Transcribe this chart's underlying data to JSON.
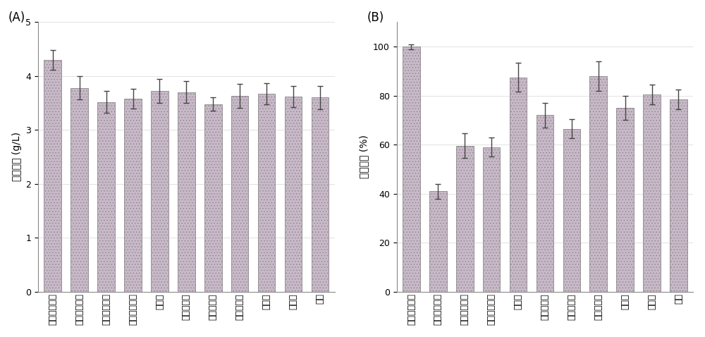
{
  "categories_A": [
    "分子级蛋白胨",
    "工业级蛋白胨",
    "生化级牛肉膏",
    "工业级牛肉膏",
    "酪蛋白",
    "鱼粉蛋白胨",
    "大豆蛋白胨",
    "柠檬酸三铵",
    "氯化铵",
    "硫酸铵",
    "尿素"
  ],
  "values_A": [
    4.3,
    3.78,
    3.52,
    3.58,
    3.72,
    3.7,
    3.48,
    3.63,
    3.67,
    3.62,
    3.6
  ],
  "errors_A": [
    0.18,
    0.22,
    0.2,
    0.18,
    0.22,
    0.2,
    0.12,
    0.22,
    0.2,
    0.2,
    0.22
  ],
  "ylabel_A": "菌体干重 (g/L)",
  "ylim_A": [
    0,
    5
  ],
  "yticks_A": [
    0,
    1,
    2,
    3,
    4,
    5
  ],
  "label_A": "(A)",
  "categories_B": [
    "分子级蛋白胨",
    "工业级蛋白胨",
    "生化级牛肉膏",
    "工业级牛肉膏",
    "酪蛋白",
    "鱼粉蛋白胨",
    "大豆蛋白胨",
    "柠檬酸三铵",
    "氯化铵",
    "硫酸铵",
    "尿素"
  ],
  "values_B": [
    100,
    41,
    59.5,
    59,
    87.5,
    72,
    66.5,
    88,
    75,
    80.5,
    78.5
  ],
  "errors_B": [
    1,
    3,
    5,
    4,
    6,
    5,
    4,
    6,
    5,
    4,
    4
  ],
  "ylabel_B": "相对酶活 (%)",
  "ylim_B": [
    0,
    110
  ],
  "yticks_B": [
    0,
    20,
    40,
    60,
    80,
    100
  ],
  "label_B": "(B)",
  "bar_facecolor": "#c8b8c8",
  "bar_hatchcolor": "#7a9a7a",
  "bar_edgecolor": "#888888",
  "bar_hatch": "....",
  "ecolor": "#444444",
  "capsize": 3,
  "bar_width": 0.65,
  "tick_fontsize": 9,
  "label_fontsize": 10,
  "panel_label_fontsize": 12,
  "grid_color": "#dddddd",
  "bg_color": "#ffffff"
}
